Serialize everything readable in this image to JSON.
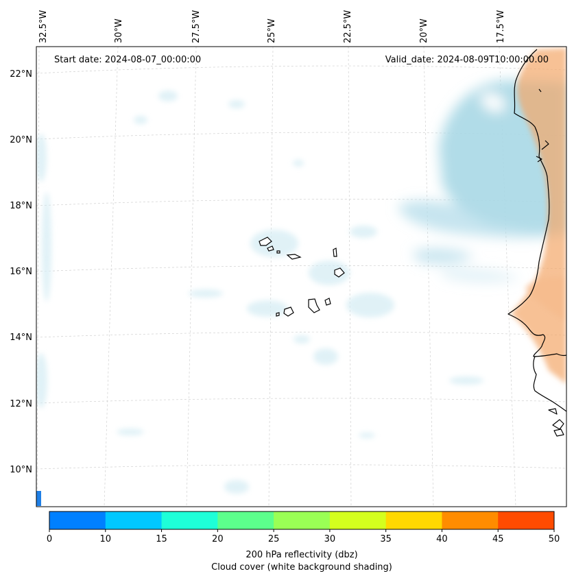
{
  "map": {
    "start_date": "Start date: 2024-08-07_00:00:00",
    "valid_date": "Valid_date: 2024-08-09T10:00:00.00",
    "lon_labels": [
      "32.5°W",
      "30°W",
      "27.5°W",
      "25°W",
      "22.5°W",
      "20°W",
      "17.5°W"
    ],
    "lat_labels": [
      "22°N",
      "20°N",
      "18°N",
      "16°N",
      "14°N",
      "12°N",
      "10°N"
    ],
    "colors": {
      "cloud": "#a9d8e6",
      "land_shading": "#f4a66a",
      "coastline": "#000000"
    }
  },
  "colorbar": {
    "ticks": [
      "0",
      "10",
      "15",
      "20",
      "25",
      "30",
      "35",
      "40",
      "45",
      "50"
    ],
    "colors": [
      "#0080ff",
      "#00c8ff",
      "#1effd8",
      "#5cff8c",
      "#9aff55",
      "#d4ff1e",
      "#ffd800",
      "#ff8c00",
      "#ff4b00"
    ],
    "title": "200 hPa reflectivity (dbz)",
    "subtitle": "Cloud cover (white background shading)"
  }
}
